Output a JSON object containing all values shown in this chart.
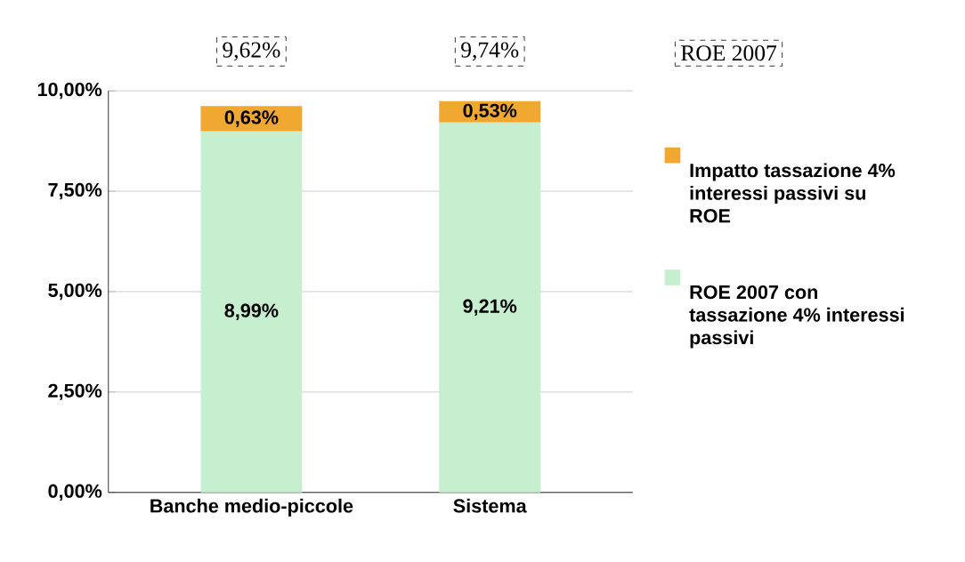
{
  "chart_data": {
    "type": "bar",
    "stacked": true,
    "categories": [
      "Banche medio-piccole",
      "Sistema"
    ],
    "series": [
      {
        "name": "ROE 2007 con tassazione 4% interessi passivi",
        "color": "#c6efcf",
        "values": [
          8.99,
          9.21
        ],
        "value_labels": [
          "8,99%",
          "9,21%"
        ]
      },
      {
        "name": "Impatto tassazione 4% interessi passivi su ROE",
        "color": "#f0a830",
        "values": [
          0.63,
          0.53
        ],
        "value_labels": [
          "0,63%",
          "0,53%"
        ]
      }
    ],
    "totals": [
      "9,62%",
      "9,74%"
    ],
    "legend_title": "ROE 2007",
    "legend": "right",
    "grid": "y",
    "ylim": [
      0,
      10
    ],
    "yticks": [
      {
        "value": 0,
        "label": "0,00%"
      },
      {
        "value": 2.5,
        "label": "2,50%"
      },
      {
        "value": 5,
        "label": "5,00%"
      },
      {
        "value": 7.5,
        "label": "7,50%"
      },
      {
        "value": 10,
        "label": "10,00%"
      }
    ]
  }
}
